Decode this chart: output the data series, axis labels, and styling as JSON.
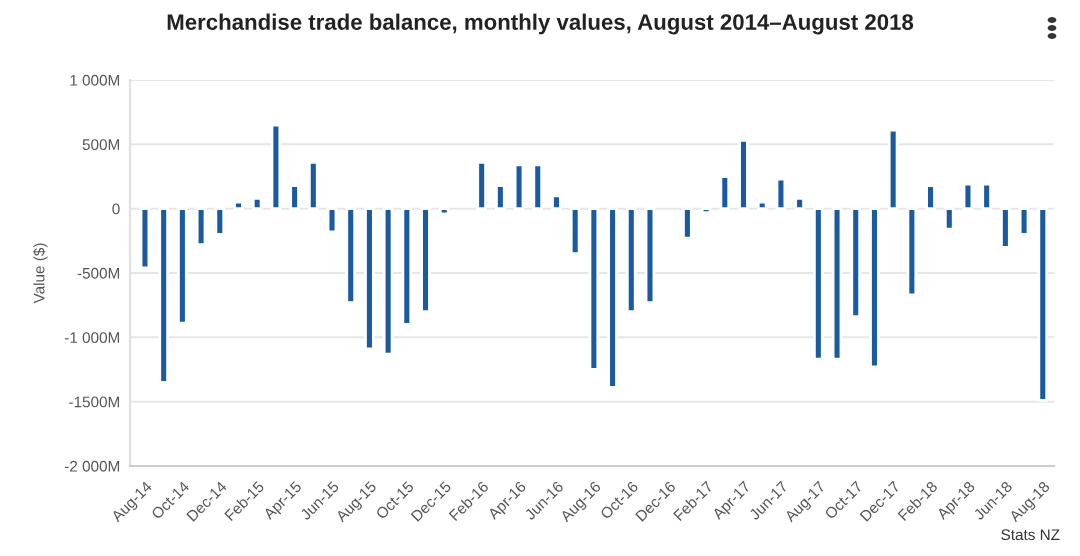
{
  "chart_data": {
    "type": "bar",
    "title": "Merchandise trade balance, monthly values, August 2014–August 2018",
    "ylabel": "Value ($)",
    "categories": [
      "Aug-14",
      null,
      "Oct-14",
      null,
      "Dec-14",
      null,
      "Feb-15",
      null,
      "Apr-15",
      null,
      "Jun-15",
      null,
      "Aug-15",
      null,
      "Oct-15",
      null,
      "Dec-15",
      null,
      "Feb-16",
      null,
      "Apr-16",
      null,
      "Jun-16",
      null,
      "Aug-16",
      null,
      "Oct-16",
      null,
      "Dec-16",
      null,
      "Feb-17",
      null,
      "Apr-17",
      null,
      "Jun-17",
      null,
      "Aug-17",
      null,
      "Oct-17",
      null,
      "Dec-17",
      null,
      "Feb-18",
      null,
      "Apr-18",
      null,
      "Jun-18",
      null,
      "Aug-18"
    ],
    "values": [
      -460,
      -1350,
      -890,
      -280,
      -200,
      50,
      80,
      650,
      180,
      360,
      -180,
      -730,
      -1090,
      -1130,
      -900,
      -800,
      -40,
      null,
      360,
      180,
      340,
      340,
      100,
      -350,
      -1250,
      -1390,
      -800,
      -730,
      null,
      -230,
      -30,
      250,
      530,
      50,
      230,
      80,
      -1170,
      -1170,
      -840,
      -1230,
      610,
      -670,
      180,
      -160,
      190,
      190,
      -300,
      -200,
      -1490
    ],
    "color": "#1a5aa0",
    "ylim": [
      -2000,
      1000
    ],
    "yticks": [
      {
        "value": -2000,
        "label": "-2 000M"
      },
      {
        "value": -1500,
        "label": "-1500M"
      },
      {
        "value": -1000,
        "label": "-1 000M"
      },
      {
        "value": -500,
        "label": "-500M"
      },
      0,
      {
        "value": 500,
        "label": "500M"
      },
      {
        "value": 1000,
        "label": "1 000M"
      }
    ],
    "grid": "y",
    "legend": false,
    "annotations": [
      "Stats NZ"
    ]
  }
}
